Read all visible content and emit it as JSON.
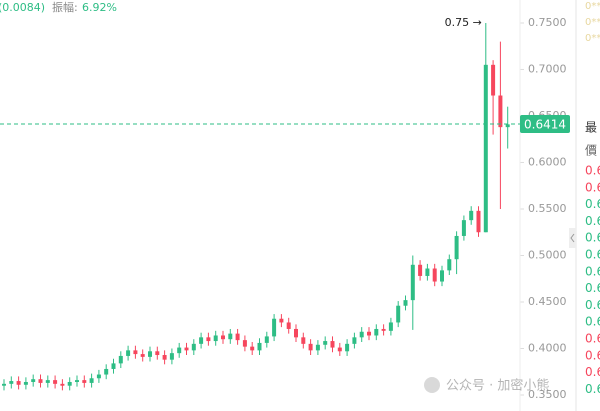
{
  "chart_data": {
    "type": "candlestick",
    "header": {
      "change": "(0.0084)",
      "amplitude_label": "振幅:",
      "amplitude": "6.92%"
    },
    "max_annotation": "0.75 →",
    "last_price": 0.6414,
    "up_color": "#2ebd85",
    "down_color": "#f6465d",
    "ylim": [
      0.3328,
      0.7747
    ],
    "yticks": [
      {
        "value": 0.75,
        "label": "0.7500"
      },
      {
        "value": 0.7,
        "label": "0.7000"
      },
      {
        "value": 0.65,
        "label": "0.6500"
      },
      {
        "value": 0.6,
        "label": "0.6000"
      },
      {
        "value": 0.55,
        "label": "0.5500"
      },
      {
        "value": 0.5,
        "label": "0.5000"
      },
      {
        "value": 0.45,
        "label": "0.4500"
      },
      {
        "value": 0.4,
        "label": "0.4000"
      },
      {
        "value": 0.35,
        "label": "0.3500"
      }
    ],
    "open": [
      0.36,
      0.362,
      0.365,
      0.361,
      0.364,
      0.367,
      0.363,
      0.366,
      0.362,
      0.36,
      0.364,
      0.366,
      0.363,
      0.368,
      0.372,
      0.378,
      0.384,
      0.392,
      0.398,
      0.394,
      0.391,
      0.397,
      0.393,
      0.388,
      0.395,
      0.401,
      0.398,
      0.405,
      0.412,
      0.408,
      0.414,
      0.41,
      0.416,
      0.409,
      0.402,
      0.398,
      0.406,
      0.413,
      0.432,
      0.428,
      0.421,
      0.412,
      0.405,
      0.398,
      0.404,
      0.408,
      0.401,
      0.397,
      0.405,
      0.412,
      0.418,
      0.414,
      0.421,
      0.419,
      0.428,
      0.446,
      0.452,
      0.49,
      0.478,
      0.486,
      0.472,
      0.484,
      0.496,
      0.521,
      0.538,
      0.548,
      0.525,
      0.705,
      0.672,
      0.638
    ],
    "high": [
      0.367,
      0.37,
      0.37,
      0.369,
      0.372,
      0.372,
      0.371,
      0.371,
      0.367,
      0.369,
      0.371,
      0.371,
      0.373,
      0.377,
      0.383,
      0.389,
      0.397,
      0.403,
      0.403,
      0.399,
      0.402,
      0.402,
      0.398,
      0.4,
      0.406,
      0.406,
      0.41,
      0.417,
      0.417,
      0.419,
      0.419,
      0.421,
      0.421,
      0.414,
      0.407,
      0.411,
      0.418,
      0.437,
      0.437,
      0.433,
      0.426,
      0.417,
      0.41,
      0.409,
      0.413,
      0.413,
      0.406,
      0.41,
      0.417,
      0.423,
      0.423,
      0.426,
      0.426,
      0.433,
      0.451,
      0.457,
      0.5,
      0.495,
      0.491,
      0.491,
      0.489,
      0.501,
      0.526,
      0.543,
      0.553,
      0.553,
      0.75,
      0.71,
      0.73,
      0.66
    ],
    "low": [
      0.355,
      0.357,
      0.356,
      0.356,
      0.359,
      0.358,
      0.358,
      0.357,
      0.355,
      0.355,
      0.359,
      0.358,
      0.358,
      0.363,
      0.367,
      0.373,
      0.379,
      0.387,
      0.389,
      0.386,
      0.386,
      0.388,
      0.383,
      0.383,
      0.39,
      0.393,
      0.393,
      0.4,
      0.403,
      0.403,
      0.405,
      0.405,
      0.404,
      0.397,
      0.393,
      0.393,
      0.401,
      0.408,
      0.423,
      0.416,
      0.407,
      0.4,
      0.393,
      0.393,
      0.399,
      0.396,
      0.392,
      0.392,
      0.4,
      0.407,
      0.409,
      0.409,
      0.414,
      0.414,
      0.423,
      0.441,
      0.42,
      0.473,
      0.473,
      0.467,
      0.467,
      0.479,
      0.48,
      0.516,
      0.533,
      0.52,
      0.525,
      0.63,
      0.55,
      0.615
    ],
    "close": [
      0.362,
      0.365,
      0.361,
      0.364,
      0.367,
      0.363,
      0.366,
      0.362,
      0.36,
      0.364,
      0.366,
      0.363,
      0.368,
      0.372,
      0.378,
      0.384,
      0.392,
      0.398,
      0.394,
      0.391,
      0.397,
      0.393,
      0.388,
      0.395,
      0.401,
      0.398,
      0.405,
      0.412,
      0.408,
      0.414,
      0.41,
      0.416,
      0.409,
      0.402,
      0.398,
      0.406,
      0.413,
      0.432,
      0.428,
      0.421,
      0.412,
      0.405,
      0.398,
      0.404,
      0.408,
      0.401,
      0.397,
      0.405,
      0.412,
      0.418,
      0.414,
      0.421,
      0.419,
      0.428,
      0.446,
      0.452,
      0.49,
      0.478,
      0.486,
      0.472,
      0.484,
      0.496,
      0.521,
      0.538,
      0.548,
      0.525,
      0.705,
      0.672,
      0.638,
      0.641
    ]
  },
  "side_panel": {
    "top_items": [
      "0**",
      "0**",
      "0**"
    ],
    "header_1": "最",
    "header_2": "價",
    "rows": [
      {
        "text": "0.6",
        "side": "down"
      },
      {
        "text": "0.6",
        "side": "down"
      },
      {
        "text": "0.6",
        "side": "up"
      },
      {
        "text": "0.6",
        "side": "up"
      },
      {
        "text": "0.6",
        "side": "up"
      },
      {
        "text": "0.6",
        "side": "up"
      },
      {
        "text": "0.6",
        "side": "up"
      },
      {
        "text": "0.6",
        "side": "up"
      },
      {
        "text": "0.6",
        "side": "up"
      },
      {
        "text": "0.6",
        "side": "up"
      },
      {
        "text": "0.6",
        "side": "down"
      },
      {
        "text": "0.6",
        "side": "down"
      },
      {
        "text": "0.6",
        "side": "down"
      },
      {
        "text": "0.6",
        "side": "up"
      }
    ]
  },
  "watermark": "公众号 · 加密小熊"
}
